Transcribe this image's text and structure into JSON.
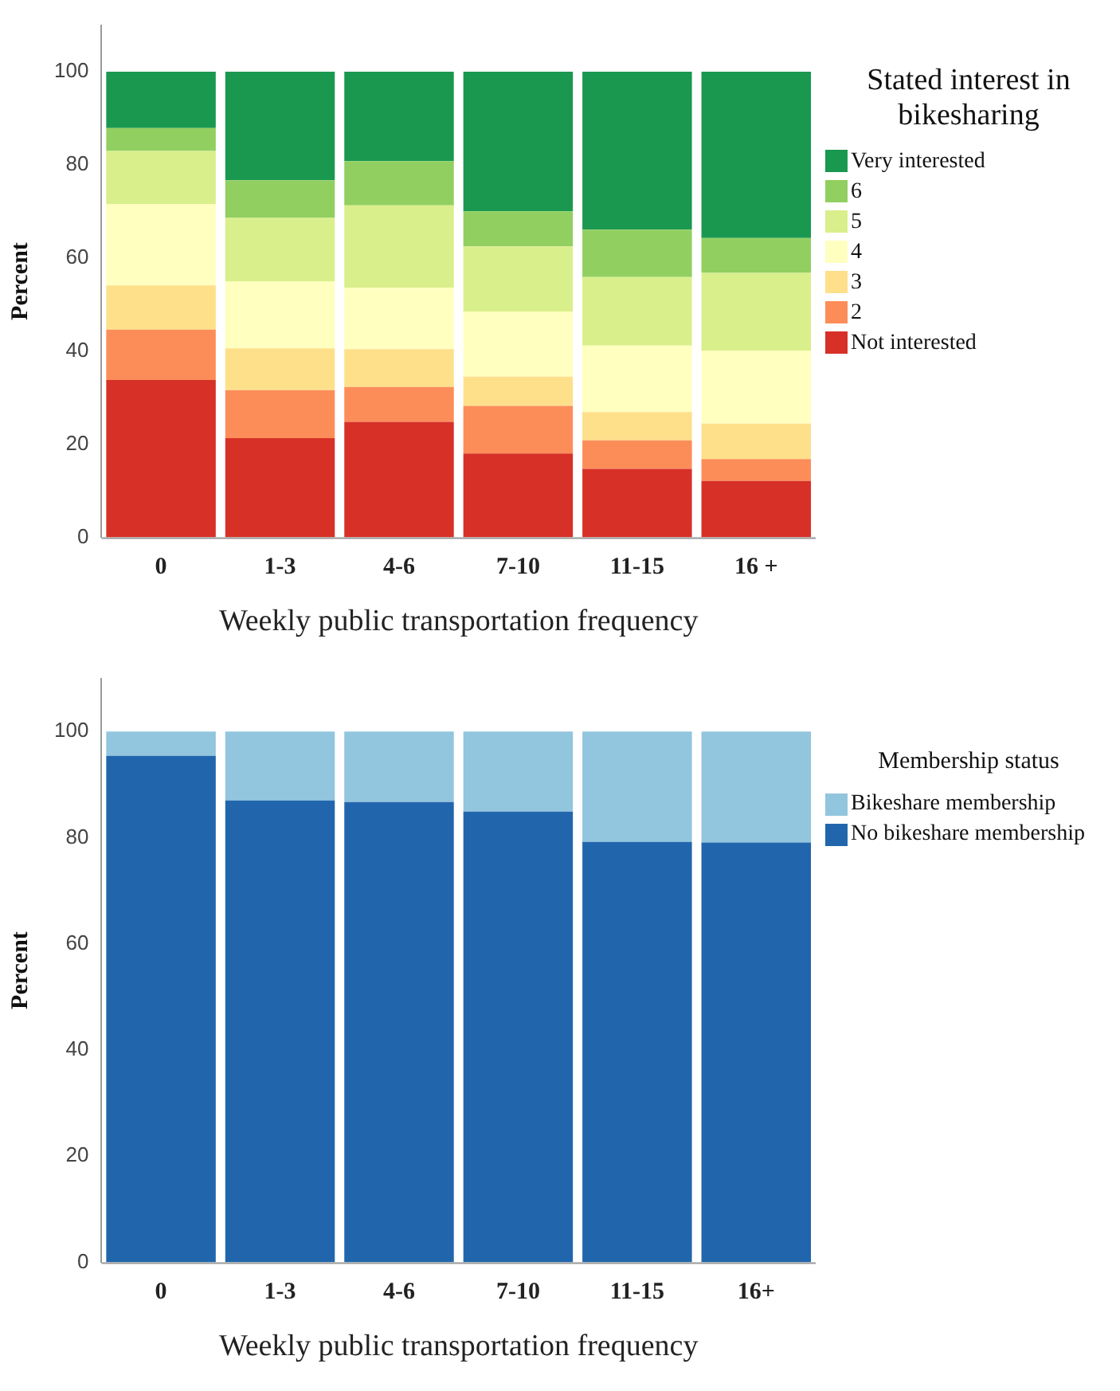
{
  "chart_data": [
    {
      "type": "bar",
      "stacked": true,
      "categories": [
        "0",
        "1-3",
        "4-6",
        "7-10",
        "11-15",
        "16 +"
      ],
      "xlabel": "Weekly public transportation frequency",
      "ylabel": "Percent",
      "legend_title": "Stated interest in bikesharing",
      "legend": "top right",
      "grid": false,
      "ylim": [
        0,
        110
      ],
      "yticks": [
        0,
        20,
        40,
        60,
        80,
        100
      ],
      "series": [
        {
          "name": "Not interested",
          "color": "#d73027",
          "values": [
            33.8,
            21.3,
            24.8,
            18.0,
            14.7,
            12.1
          ]
        },
        {
          "name": "2",
          "color": "#fc8d59",
          "values": [
            10.8,
            10.3,
            7.5,
            10.2,
            6.1,
            4.7
          ]
        },
        {
          "name": "3",
          "color": "#fee08b",
          "values": [
            9.5,
            9.0,
            8.1,
            6.3,
            6.1,
            7.6
          ]
        },
        {
          "name": "4",
          "color": "#ffffbf",
          "values": [
            17.5,
            14.4,
            13.2,
            14.0,
            14.3,
            15.7
          ]
        },
        {
          "name": "5",
          "color": "#d9ef8b",
          "values": [
            11.4,
            13.6,
            17.7,
            14.0,
            14.7,
            16.7
          ]
        },
        {
          "name": "6",
          "color": "#91cf60",
          "values": [
            4.9,
            8.1,
            9.5,
            7.5,
            10.2,
            7.5
          ]
        },
        {
          "name": "Very interested",
          "color": "#1a9850",
          "values": [
            12.1,
            23.3,
            19.2,
            30.0,
            33.9,
            35.7
          ]
        }
      ]
    },
    {
      "type": "bar",
      "stacked": true,
      "categories": [
        "0",
        "1-3",
        "4-6",
        "7-10",
        "11-15",
        "16+"
      ],
      "xlabel": "Weekly public transportation frequency",
      "ylabel": "Percent",
      "legend_title": "Membership status",
      "legend": "top right",
      "grid": false,
      "ylim": [
        0,
        110
      ],
      "yticks": [
        0,
        20,
        40,
        60,
        80,
        100
      ],
      "series": [
        {
          "name": "No bikeshare membership",
          "color": "#2166ac",
          "values": [
            95.4,
            87.0,
            86.7,
            84.9,
            79.2,
            79.1
          ]
        },
        {
          "name": "Bikeshare membership",
          "color": "#92c5de",
          "values": [
            4.6,
            13.0,
            13.3,
            15.1,
            20.8,
            20.9
          ]
        }
      ]
    }
  ]
}
